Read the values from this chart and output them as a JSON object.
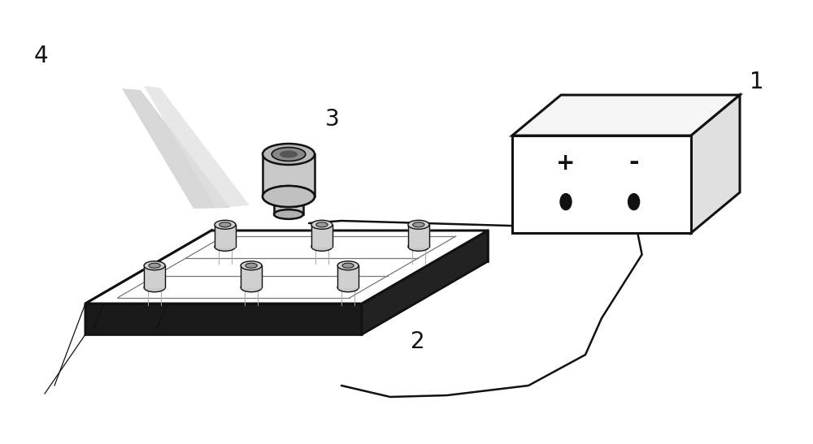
{
  "bg_color": "#ffffff",
  "label_1": "1",
  "label_2": "2",
  "label_3": "3",
  "label_4": "4",
  "label_plus": "+",
  "label_minus": "-",
  "label_fontsize": 20,
  "symbol_fontsize": 18,
  "lw": 1.8
}
